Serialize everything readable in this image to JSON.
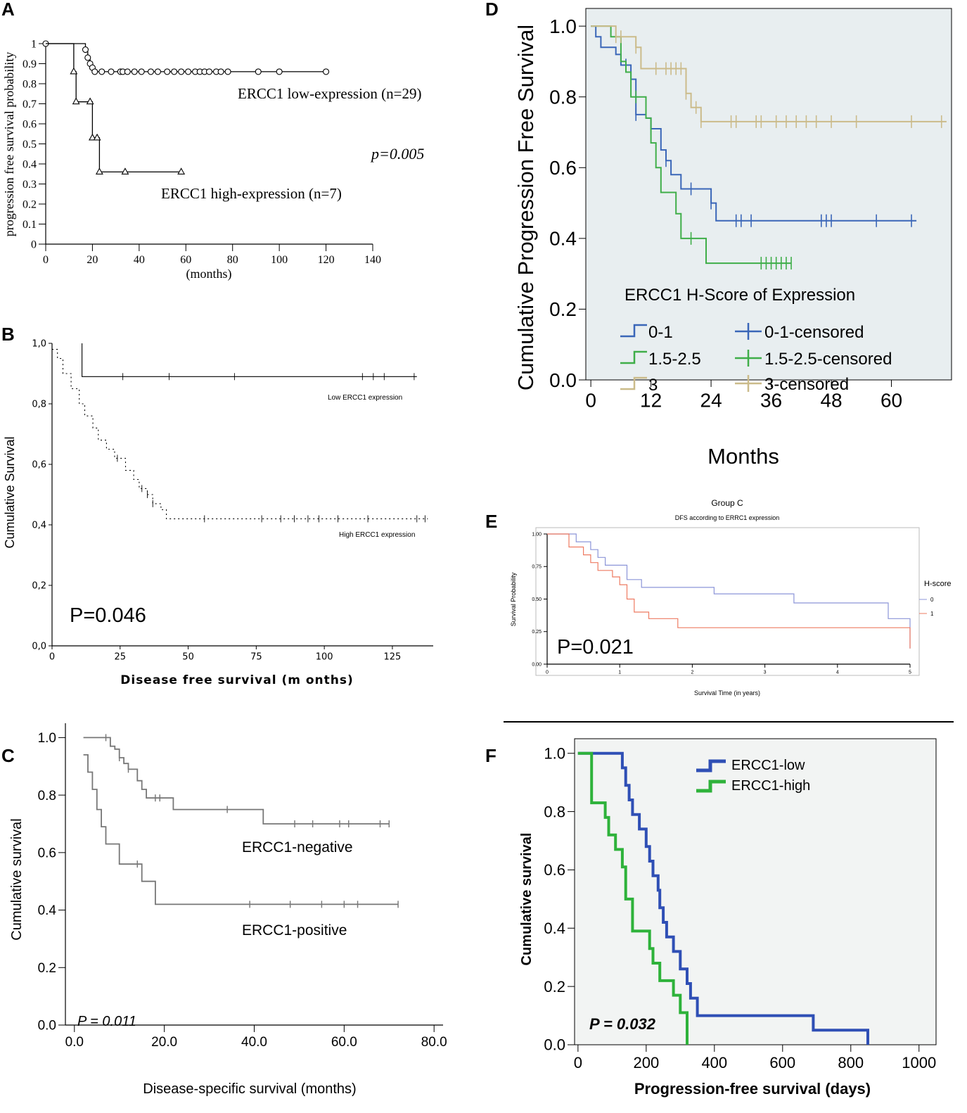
{
  "colors": {
    "black": "#000000",
    "gray": "#777777",
    "blue": "#3a66b8",
    "green": "#3fae49",
    "tan": "#cbbb8a",
    "eblue": "#8c95d8",
    "ered": "#ee7b62",
    "fblue": "#2f4fb5",
    "fgreen": "#2eb23a",
    "panel_bg": "#e8eef0",
    "panel_bg_f": "#f2f4f3"
  },
  "chart_data": [
    {
      "panel": "A",
      "type": "line",
      "title": "",
      "xlabel": "(months)",
      "ylabel": "progression free survival probability",
      "xlim": [
        0,
        140
      ],
      "ylim": [
        0,
        1
      ],
      "x_ticks": [
        "0",
        "20",
        "40",
        "60",
        "80",
        "100",
        "120",
        "140"
      ],
      "y_ticks": [
        "0",
        "0.1",
        "0.2",
        "0.3",
        "0.4",
        "0.5",
        "0.6",
        "0.7",
        "0.8",
        "0.9",
        "1"
      ],
      "annotation": "p=0.005",
      "series": [
        {
          "name": "ERCC1 low-expression (n=29)",
          "x": [
            0,
            17,
            18,
            19,
            20,
            21,
            120
          ],
          "y": [
            1,
            0.97,
            0.93,
            0.9,
            0.88,
            0.86,
            0.86
          ],
          "censored_x": [
            0,
            17,
            18,
            19,
            20,
            21,
            24,
            28,
            32,
            33,
            35,
            38,
            41,
            45,
            48,
            52,
            55,
            58,
            61,
            64,
            66,
            68,
            70,
            73,
            75,
            78,
            91,
            100,
            120
          ]
        },
        {
          "name": "ERCC1 high-expression (n=7)",
          "x": [
            0,
            12,
            13,
            19,
            20,
            23,
            58
          ],
          "y": [
            1,
            0.86,
            0.71,
            0.71,
            0.53,
            0.36,
            0.36
          ],
          "censored_x": [
            12,
            13,
            19,
            20,
            22,
            23,
            34,
            58
          ]
        }
      ]
    },
    {
      "panel": "B",
      "type": "line",
      "title": "",
      "xlabel": "Disease free survival (m onths)",
      "ylabel": "Cumulative Survival",
      "xlim": [
        0,
        140
      ],
      "ylim": [
        0,
        1.0
      ],
      "x_ticks": [
        "0",
        "25",
        "50",
        "75",
        "100",
        "125"
      ],
      "y_ticks": [
        "0,0",
        "0,2",
        "0,4",
        "0,6",
        "0,8",
        "1,0"
      ],
      "annotation": "P=0.046",
      "series": [
        {
          "name": "Low ERCC1 expression",
          "x": [
            11,
            11,
            134
          ],
          "y": [
            1.0,
            0.89,
            0.89
          ],
          "censored_x": [
            26,
            43,
            67,
            114,
            118,
            122,
            133
          ]
        },
        {
          "name": "High ERCC1 expression",
          "x": [
            0,
            2,
            4,
            7,
            10,
            12,
            15,
            17,
            20,
            23,
            27,
            30,
            32,
            35,
            37,
            40,
            42,
            138
          ],
          "y": [
            0.98,
            0.95,
            0.9,
            0.85,
            0.8,
            0.76,
            0.72,
            0.68,
            0.65,
            0.62,
            0.58,
            0.55,
            0.52,
            0.5,
            0.47,
            0.45,
            0.42,
            0.42
          ],
          "censored_x": [
            24,
            33,
            35,
            37,
            56,
            77,
            84,
            89,
            94,
            98,
            105,
            116,
            134,
            137
          ]
        }
      ]
    },
    {
      "panel": "C",
      "type": "line",
      "title": "",
      "xlabel": "Disease-specific survival (months)",
      "ylabel": "Cumulative survival",
      "xlim": [
        -2,
        82
      ],
      "ylim": [
        0,
        1.05
      ],
      "x_ticks": [
        "0.0",
        "20.0",
        "40.0",
        "60.0",
        "80.0"
      ],
      "y_ticks": [
        "0.0",
        "0.2",
        "0.4",
        "0.6",
        "0.8",
        "1.0"
      ],
      "annotation": "P = 0.011",
      "series": [
        {
          "name": "ERCC1-negative",
          "x": [
            2,
            8,
            9,
            10,
            11,
            12,
            14,
            15,
            16,
            22,
            42,
            70
          ],
          "y": [
            1.0,
            0.97,
            0.96,
            0.93,
            0.91,
            0.89,
            0.85,
            0.82,
            0.79,
            0.75,
            0.7,
            0.7
          ],
          "censored_x": [
            7,
            10,
            12,
            18,
            19,
            34,
            49,
            53,
            59,
            61,
            68,
            70
          ]
        },
        {
          "name": "ERCC1-positive",
          "x": [
            2,
            3,
            4,
            5,
            6,
            7,
            10,
            15,
            18,
            72
          ],
          "y": [
            0.94,
            0.88,
            0.82,
            0.75,
            0.69,
            0.63,
            0.56,
            0.5,
            0.42,
            0.42
          ],
          "censored_x": [
            14,
            39,
            48,
            55,
            60,
            63,
            72
          ]
        }
      ]
    },
    {
      "panel": "D",
      "type": "line",
      "title": "",
      "xlabel": "Months",
      "ylabel": "Cumulative Progression Free Survival",
      "xlim": [
        -1,
        72
      ],
      "ylim": [
        0,
        1.05
      ],
      "x_ticks": [
        "0",
        "12",
        "24",
        "36",
        "48",
        "60"
      ],
      "y_ticks": [
        "0.0",
        "0.2",
        "0.4",
        "0.6",
        "0.8",
        "1.0"
      ],
      "legend_title": "ERCC1 H-Score of Expression",
      "legend_entries": [
        "0-1",
        "0-1-censored",
        "1.5-2.5",
        "1.5-2.5-censored",
        "3",
        "3-censored"
      ],
      "series": [
        {
          "name": "0-1",
          "x": [
            0,
            1,
            2,
            5,
            6,
            8,
            9,
            11,
            12,
            14,
            15,
            16,
            18,
            24,
            25,
            65
          ],
          "y": [
            1.0,
            0.97,
            0.94,
            0.92,
            0.89,
            0.85,
            0.75,
            0.74,
            0.71,
            0.65,
            0.62,
            0.58,
            0.54,
            0.5,
            0.45,
            0.45
          ],
          "censored_x": [
            7,
            9,
            12,
            15,
            20,
            24,
            29,
            30,
            32,
            46,
            47,
            48,
            57,
            64
          ]
        },
        {
          "name": "1.5-2.5",
          "x": [
            0,
            4,
            6,
            7,
            8,
            11,
            12,
            13,
            14,
            17,
            18,
            23,
            40
          ],
          "y": [
            1.0,
            0.97,
            0.9,
            0.87,
            0.8,
            0.74,
            0.67,
            0.6,
            0.53,
            0.47,
            0.4,
            0.33,
            0.33
          ],
          "censored_x": [
            9,
            20,
            34,
            35,
            36,
            37,
            38,
            39,
            40
          ]
        },
        {
          "name": "3",
          "x": [
            0,
            5,
            9,
            10,
            19,
            20,
            22,
            71
          ],
          "y": [
            1.0,
            0.97,
            0.94,
            0.88,
            0.81,
            0.77,
            0.73,
            0.73
          ],
          "censored_x": [
            5,
            6,
            9,
            13,
            15,
            16,
            17,
            18,
            19,
            21,
            22,
            28,
            29,
            33,
            34,
            37,
            39,
            41,
            43,
            45,
            48,
            53,
            64,
            70
          ]
        }
      ]
    },
    {
      "panel": "E",
      "type": "line",
      "title": "Group C",
      "subtitle": "DFS according to ERRC1 expression",
      "xlabel": "Survival Time (in years)",
      "ylabel": "Survival Probability",
      "xlim": [
        0,
        5
      ],
      "ylim": [
        0,
        1.0
      ],
      "x_ticks": [
        "0",
        "1",
        "2",
        "3",
        "4",
        "5"
      ],
      "y_ticks": [
        "0.00",
        "0.25",
        "0.50",
        "0.75",
        "1.00"
      ],
      "legend_title": "H-score",
      "legend_entries": [
        "0",
        "1"
      ],
      "annotation": "P=0.021",
      "series": [
        {
          "name": "0",
          "x": [
            0,
            0.4,
            0.6,
            0.7,
            0.8,
            1.1,
            1.3,
            2.3,
            3.4,
            4.7,
            5.0
          ],
          "y": [
            1.0,
            0.94,
            0.88,
            0.82,
            0.76,
            0.65,
            0.59,
            0.54,
            0.47,
            0.35,
            0.12
          ],
          "censored_x": []
        },
        {
          "name": "1",
          "x": [
            0,
            0.3,
            0.5,
            0.6,
            0.7,
            0.9,
            1.0,
            1.1,
            1.2,
            1.4,
            1.8,
            5.0
          ],
          "y": [
            1.0,
            0.9,
            0.84,
            0.78,
            0.72,
            0.67,
            0.61,
            0.5,
            0.4,
            0.35,
            0.28,
            0.12
          ],
          "censored_x": []
        }
      ]
    },
    {
      "panel": "F",
      "type": "line",
      "title": "",
      "xlabel": "Progression-free survival (days)",
      "ylabel": "Cumulative survival",
      "xlim": [
        -10,
        1050
      ],
      "ylim": [
        0,
        1.05
      ],
      "x_ticks": [
        "0",
        "200",
        "400",
        "600",
        "800",
        "1000"
      ],
      "y_ticks": [
        "0.0",
        "0.2",
        "0.4",
        "0.6",
        "0.8",
        "1.0"
      ],
      "legend_entries": [
        "ERCC1-low",
        "ERCC1-high"
      ],
      "annotation": "P = 0.032",
      "series": [
        {
          "name": "ERCC1-low",
          "x": [
            0,
            130,
            140,
            150,
            160,
            180,
            200,
            210,
            220,
            235,
            240,
            250,
            260,
            280,
            300,
            320,
            330,
            350,
            360,
            690,
            850
          ],
          "y": [
            1.0,
            0.95,
            0.89,
            0.84,
            0.79,
            0.74,
            0.68,
            0.63,
            0.58,
            0.53,
            0.47,
            0.42,
            0.37,
            0.32,
            0.26,
            0.21,
            0.16,
            0.1,
            0.1,
            0.05,
            0.0
          ],
          "censored_x": []
        },
        {
          "name": "ERCC1-high",
          "x": [
            0,
            40,
            80,
            90,
            110,
            130,
            140,
            160,
            210,
            220,
            240,
            280,
            300,
            320
          ],
          "y": [
            1.0,
            0.83,
            0.78,
            0.72,
            0.67,
            0.61,
            0.5,
            0.39,
            0.33,
            0.28,
            0.22,
            0.17,
            0.11,
            0.0
          ],
          "censored_x": []
        }
      ]
    }
  ]
}
